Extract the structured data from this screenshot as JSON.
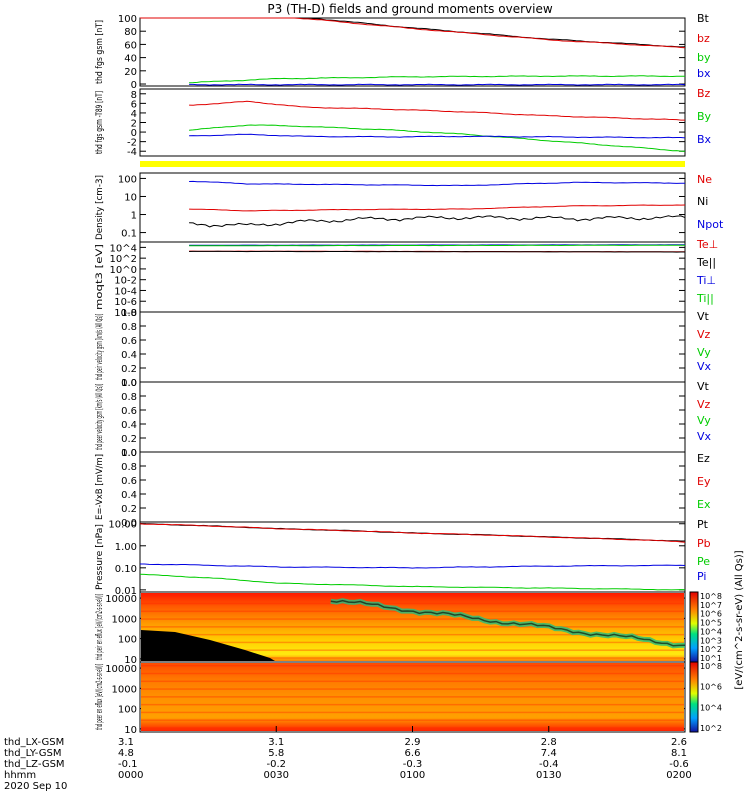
{
  "title": "P3 (TH-D) fields and ground moments overview",
  "colors": {
    "black": "#000000",
    "red": "#e00000",
    "green": "#00cc00",
    "blue": "#0000e0",
    "yellow": "#ffff00"
  },
  "x_axis": {
    "ticks": [
      "0000",
      "0030",
      "0100",
      "0130",
      "0200"
    ],
    "label_rows": [
      {
        "label": "thd_LX-GSM",
        "values": [
          "3.1",
          "3.1",
          "2.9",
          "2.8",
          "2.6"
        ]
      },
      {
        "label": "thd_LY-GSM",
        "values": [
          "4.8",
          "5.8",
          "6.6",
          "7.4",
          "8.1"
        ]
      },
      {
        "label": "thd_LZ-GSM",
        "values": [
          "-0.1",
          "-0.2",
          "-0.3",
          "-0.4",
          "-0.6"
        ]
      },
      {
        "label": "hhmm",
        "values": [
          "0000",
          "0030",
          "0100",
          "0130",
          "0200"
        ]
      }
    ],
    "date": "2020 Sep 10"
  },
  "chart_data": [
    {
      "type": "line",
      "ylabel": "thd fgs gsm [nT]",
      "ylim": [
        -3,
        100
      ],
      "yticks": [
        "0",
        "20",
        "40",
        "60",
        "80",
        "100"
      ],
      "series": [
        {
          "name": "Bt",
          "color": "#000000",
          "x": [
            0,
            0.25,
            0.5,
            0.75,
            1
          ],
          "values": [
            120,
            105,
            85,
            68,
            56
          ]
        },
        {
          "name": "bz",
          "color": "#e00000",
          "x": [
            0,
            0.25,
            0.5,
            0.75,
            1
          ],
          "values": [
            118,
            103,
            84,
            67,
            55
          ]
        },
        {
          "name": "by",
          "color": "#00cc00",
          "x": [
            0.09,
            0.25,
            0.5,
            0.75,
            1
          ],
          "values": [
            2,
            8,
            11,
            12,
            12
          ]
        },
        {
          "name": "bx",
          "color": "#0000e0",
          "x": [
            0.09,
            0.25,
            0.5,
            0.75,
            1
          ],
          "values": [
            -1,
            -1,
            -1,
            -1,
            -1
          ]
        }
      ]
    },
    {
      "type": "line",
      "ylabel": "thd fgs gsm -T89 [nT]",
      "ylim": [
        -5,
        9
      ],
      "yticks": [
        "-4",
        "-2",
        "0",
        "2",
        "4",
        "6",
        "8"
      ],
      "series": [
        {
          "name": "Bz",
          "color": "#e00000",
          "x": [
            0.09,
            0.2,
            0.3,
            0.45,
            0.6,
            0.75,
            1
          ],
          "values": [
            5.6,
            6.4,
            5.2,
            4.8,
            4.2,
            3.4,
            2.5
          ]
        },
        {
          "name": "By",
          "color": "#00cc00",
          "x": [
            0.09,
            0.2,
            0.3,
            0.45,
            0.6,
            0.75,
            1
          ],
          "values": [
            0.4,
            1.5,
            1.2,
            0.5,
            -0.5,
            -1.8,
            -4.0
          ]
        },
        {
          "name": "Bx",
          "color": "#0000e0",
          "x": [
            0.09,
            0.2,
            0.3,
            0.45,
            0.6,
            0.75,
            1
          ],
          "values": [
            -0.8,
            -0.5,
            -0.9,
            -1.0,
            -0.9,
            -1.0,
            -1.2
          ]
        }
      ]
    },
    {
      "type": "line",
      "ylabel": "Density [cm-3]",
      "yscale": "log",
      "ylim": [
        0.03,
        200
      ],
      "yticks": [
        "0.1",
        "1",
        "10",
        "100"
      ],
      "series": [
        {
          "name": "Ne",
          "color": "#e00000",
          "x": [
            0.09,
            0.2,
            0.4,
            0.6,
            0.8,
            1
          ],
          "values": [
            2,
            1.6,
            1.9,
            2,
            3,
            3.4
          ]
        },
        {
          "name": "Ni",
          "color": "#000000",
          "x": [
            0.09,
            0.2,
            0.4,
            0.6,
            0.8,
            1
          ],
          "values": [
            0.3,
            0.25,
            0.55,
            0.7,
            0.6,
            0.7
          ]
        },
        {
          "name": "Npot",
          "color": "#0000e0",
          "x": [
            0.09,
            0.2,
            0.4,
            0.6,
            0.8,
            1
          ],
          "values": [
            70,
            50,
            45,
            40,
            60,
            55
          ]
        }
      ]
    },
    {
      "type": "line",
      "ylabel": "moqt3 [eV]",
      "yscale": "log",
      "ylim": [
        1e-08,
        100000
      ],
      "yticks": [
        "10-8",
        "10-6",
        "10-4",
        "10-2",
        "10^0",
        "10^2",
        "10^4"
      ],
      "series": [
        {
          "name": "Te⊥",
          "color": "#e00000",
          "x": [
            0.09,
            1
          ],
          "values": [
            2000,
            1500
          ]
        },
        {
          "name": "Te||",
          "color": "#000000",
          "x": [
            0.09,
            1
          ],
          "values": [
            1800,
            1400
          ]
        },
        {
          "name": "Ti⊥",
          "color": "#0000e0",
          "x": [
            0.09,
            1
          ],
          "values": [
            25000,
            30000
          ]
        },
        {
          "name": "Ti||",
          "color": "#00cc00",
          "x": [
            0.09,
            1
          ],
          "values": [
            20000,
            25000
          ]
        }
      ]
    },
    {
      "type": "line",
      "ylabel": "thd peir velocity gsm [km/s (All Qs)]",
      "ylim": [
        0,
        1
      ],
      "yticks": [
        "0.0",
        "0.2",
        "0.4",
        "0.6",
        "0.8",
        "1.0"
      ],
      "series": [
        {
          "name": "Vt",
          "values": []
        },
        {
          "name": "Vz",
          "values": []
        },
        {
          "name": "Vy",
          "values": []
        },
        {
          "name": "Vx",
          "values": []
        }
      ]
    },
    {
      "type": "line",
      "ylabel": "thd peer velocity gsm [km/s (All Qs)]",
      "ylim": [
        0,
        1
      ],
      "yticks": [
        "0.0",
        "0.2",
        "0.4",
        "0.6",
        "0.8",
        "1.0"
      ],
      "series": [
        {
          "name": "Vt",
          "values": []
        },
        {
          "name": "Vz",
          "values": []
        },
        {
          "name": "Vy",
          "values": []
        },
        {
          "name": "Vx",
          "values": []
        }
      ]
    },
    {
      "type": "line",
      "ylabel": "E=-VxB [mV/m]",
      "ylim": [
        0,
        1
      ],
      "yticks": [
        "0.0",
        "0.2",
        "0.4",
        "0.6",
        "0.8",
        "1.0"
      ],
      "series": [
        {
          "name": "Ez",
          "values": []
        },
        {
          "name": "Ey",
          "values": []
        },
        {
          "name": "Ex",
          "values": []
        }
      ]
    },
    {
      "type": "line",
      "ylabel": "Pressure [nPa]",
      "yscale": "log",
      "ylim": [
        0.008,
        12
      ],
      "yticks": [
        "0.01",
        "0.10",
        "1.00",
        "10.00"
      ],
      "series": [
        {
          "name": "Pt",
          "color": "#000000",
          "x": [
            0,
            0.25,
            0.5,
            0.75,
            1
          ],
          "values": [
            10,
            6,
            3.8,
            2.5,
            1.6
          ]
        },
        {
          "name": "Pb",
          "color": "#e00000",
          "x": [
            0,
            0.25,
            0.5,
            0.75,
            1
          ],
          "values": [
            10,
            6,
            3.8,
            2.5,
            1.5
          ]
        },
        {
          "name": "Pe",
          "color": "#00cc00",
          "x": [
            0,
            0.25,
            0.5,
            0.75,
            1
          ],
          "values": [
            0.05,
            0.02,
            0.014,
            0.012,
            0.01
          ]
        },
        {
          "name": "Pi",
          "color": "#0000e0",
          "x": [
            0,
            0.25,
            0.5,
            0.75,
            1
          ],
          "values": [
            0.15,
            0.11,
            0.1,
            0.12,
            0.13
          ]
        }
      ]
    },
    {
      "type": "heatmap",
      "ylabel": "thd peir en eflux [eV/(cm2-s-sr-eV)]",
      "yscale": "log",
      "ylim": [
        7,
        20000
      ],
      "yticks": [
        "10",
        "100",
        "1000",
        "10000"
      ]
    },
    {
      "type": "heatmap",
      "ylabel": "thd peer en eflux [eV/(cm2-s-sr-eV)]",
      "yscale": "log",
      "ylim": [
        7,
        20000
      ],
      "yticks": [
        "10",
        "100",
        "1000",
        "10000"
      ]
    }
  ],
  "colorbars": [
    {
      "ticks": [
        "10^8",
        "10^7",
        "10^6",
        "10^5",
        "10^4",
        "10^3",
        "10^2",
        "10^1"
      ],
      "label": "[eV/(cm^2-s-sr-eV) (All Qs)]"
    },
    {
      "ticks": [
        "10^8",
        "10^6",
        "10^4",
        "10^2"
      ],
      "label": "[eV/(cm^2-s-sr-eV) (All Qs)]"
    }
  ]
}
